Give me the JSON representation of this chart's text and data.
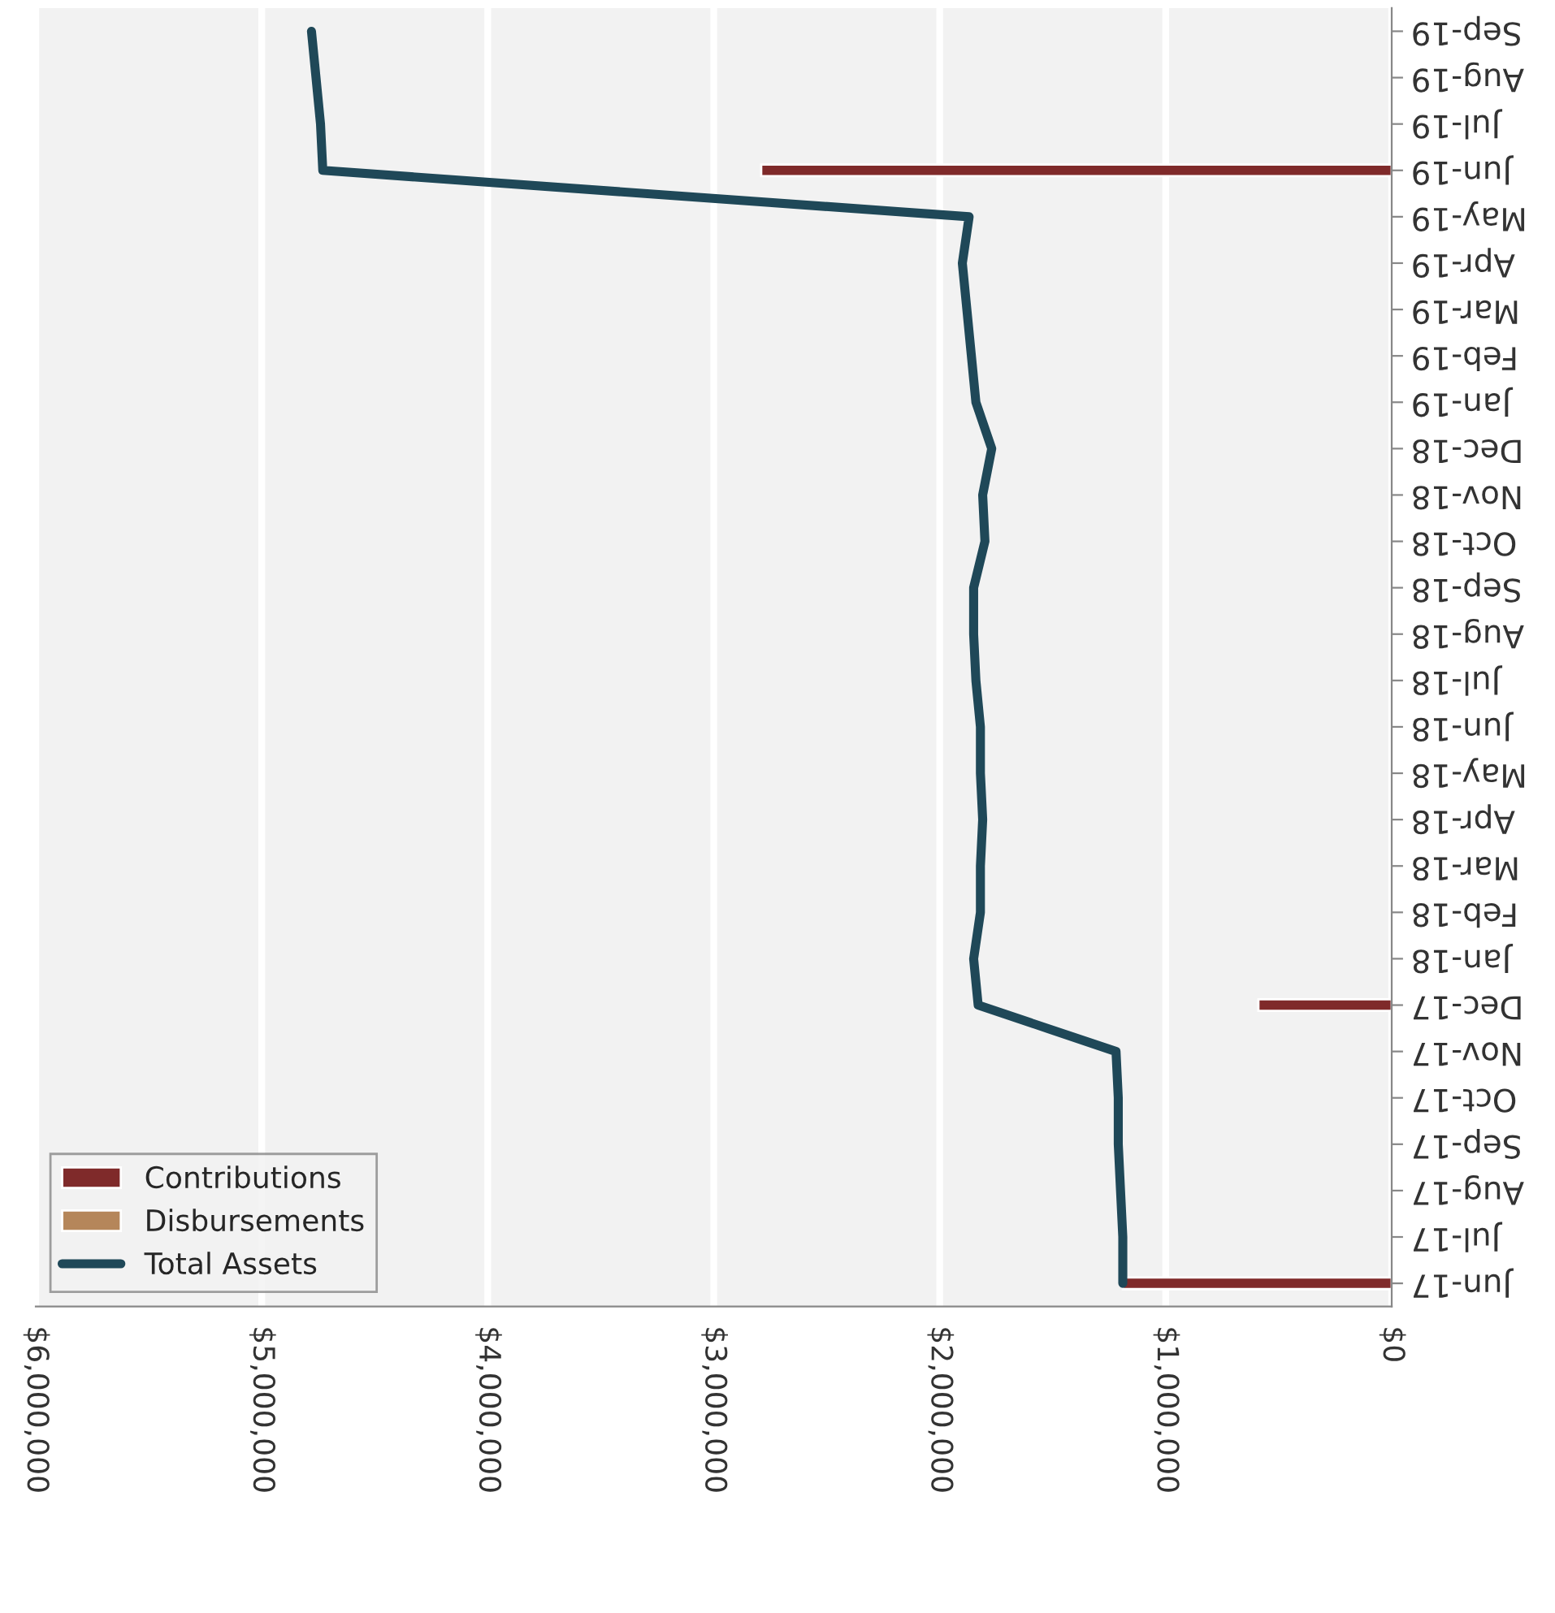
{
  "chart_data": {
    "type": "bar",
    "orientation": "horizontal",
    "categories": [
      "Sep-19",
      "Aug-19",
      "Jul-19",
      "Jun-19",
      "May-19",
      "Apr-19",
      "Mar-19",
      "Feb-19",
      "Jan-19",
      "Dec-18",
      "Nov-18",
      "Oct-18",
      "Sep-18",
      "Aug-18",
      "Jul-18",
      "Jun-18",
      "May-18",
      "Apr-18",
      "Mar-18",
      "Feb-18",
      "Jan-18",
      "Dec-17",
      "Nov-17",
      "Oct-17",
      "Sep-17",
      "Aug-17",
      "Jul-17",
      "Jun-17"
    ],
    "series": [
      {
        "name": "Contributions",
        "color": "#7f2a2a",
        "values": [
          null,
          null,
          null,
          2790000,
          null,
          null,
          null,
          null,
          null,
          null,
          null,
          null,
          null,
          null,
          null,
          null,
          null,
          null,
          null,
          null,
          null,
          590000,
          null,
          null,
          null,
          null,
          null,
          1190000
        ]
      },
      {
        "name": "Disbursements",
        "color": "#b5865a",
        "values": [
          null,
          null,
          null,
          null,
          null,
          null,
          null,
          null,
          null,
          null,
          null,
          null,
          null,
          null,
          null,
          null,
          null,
          null,
          null,
          null,
          null,
          null,
          null,
          null,
          null,
          null,
          null,
          null
        ]
      },
      {
        "name": "Total Assets",
        "type": "line",
        "color": "#1f4858",
        "values": [
          4780000,
          4760000,
          4740000,
          4730000,
          1870000,
          1900000,
          1880000,
          1860000,
          1840000,
          1770000,
          1810000,
          1800000,
          1850000,
          1850000,
          1840000,
          1820000,
          1820000,
          1810000,
          1820000,
          1820000,
          1850000,
          1830000,
          1220000,
          1210000,
          1210000,
          1200000,
          1190000,
          1190000
        ]
      }
    ],
    "xlim": [
      6000000,
      0
    ],
    "xticks": [
      {
        "value": 0,
        "label": "$0"
      },
      {
        "value": 1000000,
        "label": "$1,000,000"
      },
      {
        "value": 2000000,
        "label": "$2,000,000"
      },
      {
        "value": 3000000,
        "label": "$3,000,000"
      },
      {
        "value": 4000000,
        "label": "$4,000,000"
      },
      {
        "value": 5000000,
        "label": "$5,000,000"
      },
      {
        "value": 6000000,
        "label": "$6,000,000"
      }
    ],
    "grid": "x",
    "legend": "bottom left"
  }
}
